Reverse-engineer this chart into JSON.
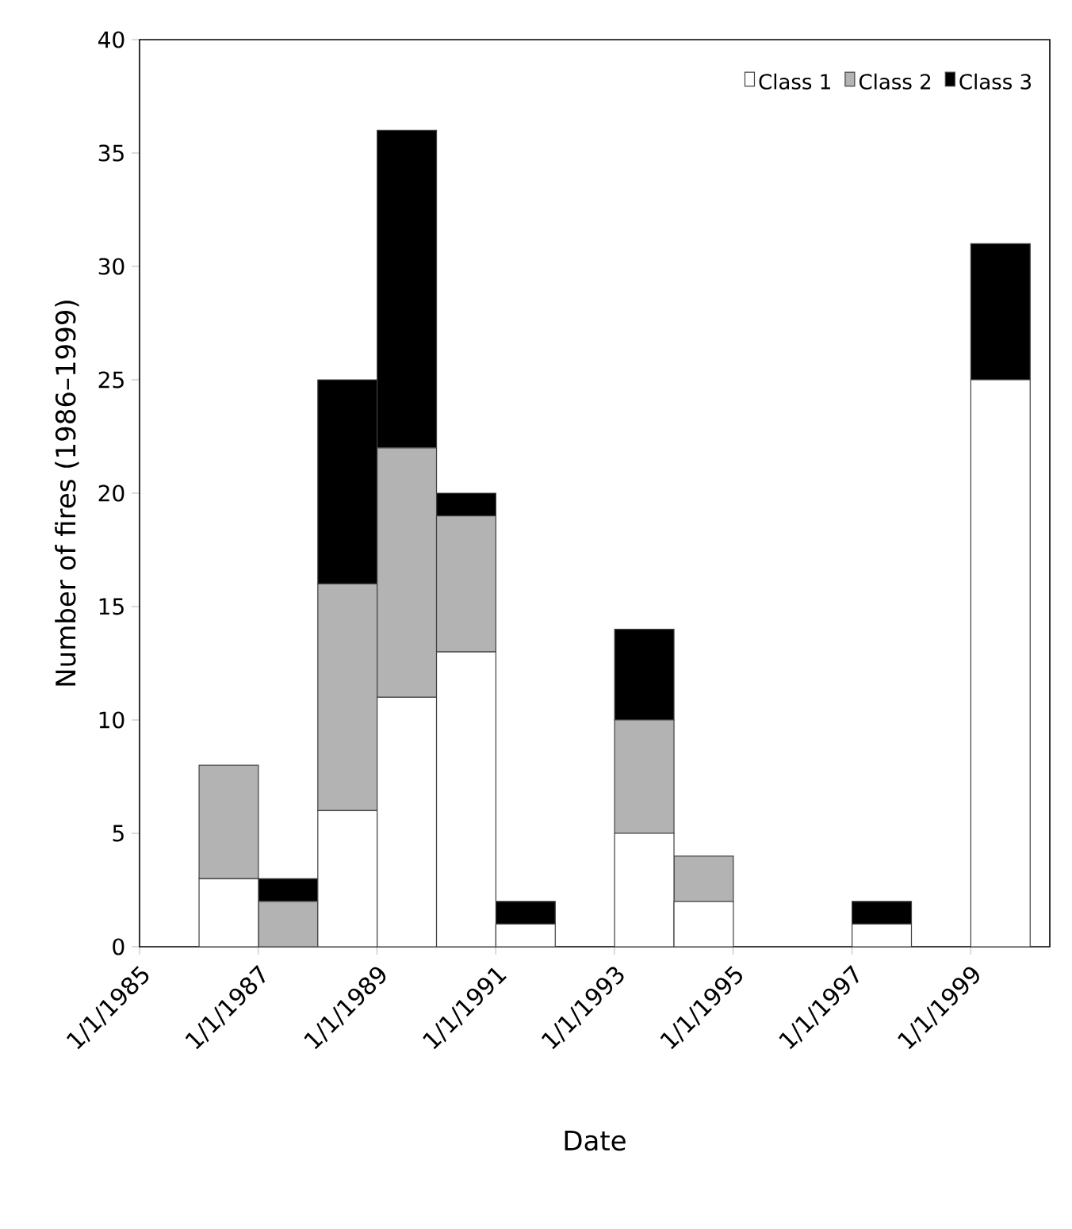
{
  "chart_data": {
    "type": "bar",
    "stacked": true,
    "xlabel": "Date",
    "ylabel": "Number of fires (1986–1999)",
    "x": [
      "1986-07-02",
      "1987-07-02",
      "1988-07-02",
      "1989-07-02",
      "1990-07-02",
      "1991-07-02",
      "1993-07-02",
      "1994-07-02",
      "1997-07-02",
      "1999-07-02"
    ],
    "series": [
      {
        "name": "Class 1",
        "color": "#ffffff",
        "values": [
          3,
          0,
          6,
          11,
          13,
          1,
          5,
          2,
          1,
          25
        ]
      },
      {
        "name": "Class 2",
        "color": "#b3b3b3",
        "values": [
          5,
          2,
          10,
          11,
          6,
          0,
          5,
          2,
          0,
          0
        ]
      },
      {
        "name": "Class 3",
        "color": "#000000",
        "values": [
          0,
          1,
          9,
          14,
          1,
          1,
          4,
          0,
          1,
          6
        ]
      }
    ],
    "xlim": [
      "1985",
      "2000-05-01"
    ],
    "xticks": [
      {
        "value": "1985",
        "label": "1/1/1985"
      },
      {
        "value": "1987",
        "label": "1/1/1987"
      },
      {
        "value": "1989",
        "label": "1/1/1989"
      },
      {
        "value": "1991",
        "label": "1/1/1991"
      },
      {
        "value": "1993",
        "label": "1/1/1993"
      },
      {
        "value": "1995",
        "label": "1/1/1995"
      },
      {
        "value": "1997",
        "label": "1/1/1997"
      },
      {
        "value": "1999",
        "label": "1/1/1999"
      }
    ],
    "ylim": [
      0,
      40
    ],
    "yticks": [
      0,
      5,
      10,
      15,
      20,
      25,
      30,
      35,
      40
    ],
    "grid": false,
    "legend": "top right"
  }
}
